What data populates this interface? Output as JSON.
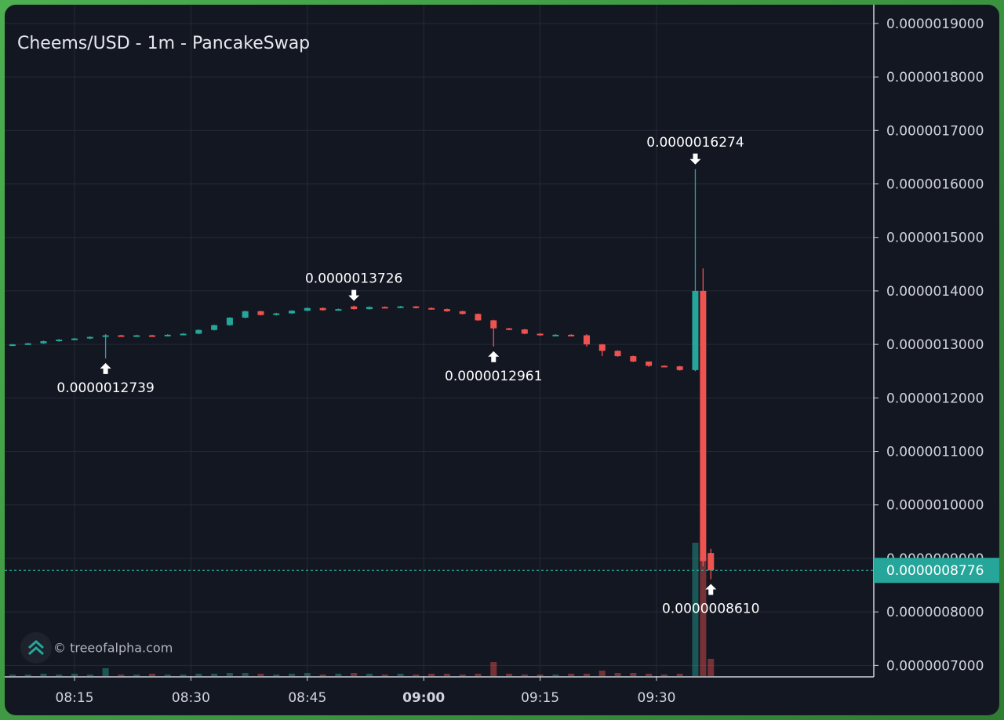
{
  "chart_data": {
    "type": "candlestick",
    "title": "Cheems/USD - 1m - PancakeSwap",
    "watermark": "© treeofalpha.com",
    "up_color": "#26a69a",
    "down_color": "#ef5350",
    "grid": true,
    "x": [
      "08:07",
      "08:09",
      "08:11",
      "08:13",
      "08:15",
      "08:17",
      "08:19",
      "08:21",
      "08:23",
      "08:25",
      "08:27",
      "08:29",
      "08:31",
      "08:33",
      "08:35",
      "08:37",
      "08:39",
      "08:41",
      "08:43",
      "08:45",
      "08:47",
      "08:49",
      "08:51",
      "08:53",
      "08:55",
      "08:57",
      "08:59",
      "09:01",
      "09:03",
      "09:05",
      "09:07",
      "09:09",
      "09:11",
      "09:13",
      "09:15",
      "09:17",
      "09:19",
      "09:21",
      "09:23",
      "09:25",
      "09:27",
      "09:29",
      "09:31",
      "09:33",
      "09:35",
      "09:36",
      "09:37"
    ],
    "open": [
      1.298e-06,
      1.3e-06,
      1.302e-06,
      1.306e-06,
      1.309e-06,
      1.311e-06,
      1.314e-06,
      1.317e-06,
      1.316e-06,
      1.317e-06,
      1.316e-06,
      1.318e-06,
      1.32e-06,
      1.327e-06,
      1.336e-06,
      1.35e-06,
      1.362e-06,
      1.355e-06,
      1.358e-06,
      1.363e-06,
      1.368e-06,
      1.364e-06,
      1.371e-06,
      1.366e-06,
      1.37e-06,
      1.369e-06,
      1.371e-06,
      1.368e-06,
      1.366e-06,
      1.362e-06,
      1.357e-06,
      1.345e-06,
      1.33e-06,
      1.328e-06,
      1.32e-06,
      1.317e-06,
      1.318e-06,
      1.317e-06,
      1.3e-06,
      1.288e-06,
      1.278e-06,
      1.268e-06,
      1.26e-06,
      1.259e-06,
      1.252e-06,
      1.4e-06,
      9.1e-07
    ],
    "high": [
      1.301e-06,
      1.303e-06,
      1.307e-06,
      1.31e-06,
      1.312e-06,
      1.315e-06,
      1.319e-06,
      1.318e-06,
      1.318e-06,
      1.318e-06,
      1.319e-06,
      1.321e-06,
      1.328e-06,
      1.337e-06,
      1.351e-06,
      1.363e-06,
      1.363e-06,
      1.359e-06,
      1.364e-06,
      1.369e-06,
      1.369e-06,
      1.367e-06,
      1.3726e-06,
      1.371e-06,
      1.371e-06,
      1.372e-06,
      1.372e-06,
      1.369e-06,
      1.367e-06,
      1.363e-06,
      1.358e-06,
      1.346e-06,
      1.331e-06,
      1.329e-06,
      1.321e-06,
      1.319e-06,
      1.319e-06,
      1.319e-06,
      1.301e-06,
      1.289e-06,
      1.279e-06,
      1.268e-06,
      1.261e-06,
      1.26e-06,
      1.6274e-06,
      1.442e-06,
      9.18e-07
    ],
    "low": [
      1.297e-06,
      1.299e-06,
      1.301e-06,
      1.305e-06,
      1.308e-06,
      1.31e-06,
      1.2739e-06,
      1.315e-06,
      1.315e-06,
      1.315e-06,
      1.315e-06,
      1.317e-06,
      1.319e-06,
      1.326e-06,
      1.335e-06,
      1.349e-06,
      1.354e-06,
      1.354e-06,
      1.357e-06,
      1.362e-06,
      1.363e-06,
      1.363e-06,
      1.365e-06,
      1.365e-06,
      1.368e-06,
      1.368e-06,
      1.367e-06,
      1.365e-06,
      1.361e-06,
      1.356e-06,
      1.344e-06,
      1.2961e-06,
      1.327e-06,
      1.319e-06,
      1.316e-06,
      1.316e-06,
      1.316e-06,
      1.296e-06,
      1.278e-06,
      1.277e-06,
      1.267e-06,
      1.258e-06,
      1.258e-06,
      1.251e-06,
      1.25e-06,
      8.85e-07,
      8.61e-07
    ],
    "close": [
      1.3e-06,
      1.302e-06,
      1.306e-06,
      1.309e-06,
      1.311e-06,
      1.314e-06,
      1.317e-06,
      1.316e-06,
      1.317e-06,
      1.316e-06,
      1.318e-06,
      1.32e-06,
      1.327e-06,
      1.336e-06,
      1.35e-06,
      1.362e-06,
      1.355e-06,
      1.358e-06,
      1.363e-06,
      1.368e-06,
      1.364e-06,
      1.366e-06,
      1.366e-06,
      1.37e-06,
      1.369e-06,
      1.371e-06,
      1.368e-06,
      1.366e-06,
      1.362e-06,
      1.357e-06,
      1.345e-06,
      1.33e-06,
      1.328e-06,
      1.32e-06,
      1.317e-06,
      1.318e-06,
      1.317e-06,
      1.3e-06,
      1.288e-06,
      1.278e-06,
      1.268e-06,
      1.26e-06,
      1.259e-06,
      1.252e-06,
      1.4e-06,
      8.95e-07,
      8.776e-07
    ],
    "volume": [
      2,
      2,
      3,
      2,
      3,
      2,
      10,
      2,
      2,
      3,
      2,
      2,
      3,
      3,
      4,
      4,
      3,
      2,
      3,
      4,
      2,
      3,
      4,
      3,
      2,
      3,
      2,
      3,
      3,
      2,
      3,
      18,
      3,
      2,
      2,
      2,
      3,
      3,
      7,
      4,
      4,
      3,
      2,
      3,
      170,
      155,
      22
    ],
    "xlim": [
      "08:06",
      "09:58"
    ],
    "xticks": [
      "08:15",
      "08:30",
      "08:45",
      "09:00",
      "09:15",
      "09:30"
    ],
    "ylim": [
      6.8e-07,
      1.935e-06
    ],
    "yticks": [
      {
        "value": 7e-07,
        "label": "0.0000007000"
      },
      {
        "value": 8e-07,
        "label": "0.0000008000"
      },
      {
        "value": 9e-07,
        "label": "0.0000009000"
      },
      {
        "value": 1e-06,
        "label": "0.0000010000"
      },
      {
        "value": 1.1e-06,
        "label": "0.0000011000"
      },
      {
        "value": 1.2e-06,
        "label": "0.0000012000"
      },
      {
        "value": 1.3e-06,
        "label": "0.0000013000"
      },
      {
        "value": 1.4e-06,
        "label": "0.0000014000"
      },
      {
        "value": 1.5e-06,
        "label": "0.0000015000"
      },
      {
        "value": 1.6e-06,
        "label": "0.0000016000"
      },
      {
        "value": 1.7e-06,
        "label": "0.0000017000"
      },
      {
        "value": 1.8e-06,
        "label": "0.0000018000"
      },
      {
        "value": 1.9e-06,
        "label": "0.0000019000"
      }
    ],
    "markers": [
      {
        "label": "0.0000012739",
        "time": "08:19",
        "kind": "low"
      },
      {
        "label": "0.0000013726",
        "time": "08:51",
        "kind": "high"
      },
      {
        "label": "0.0000012961",
        "time": "09:09",
        "kind": "low"
      },
      {
        "label": "0.0000016274",
        "time": "09:35",
        "kind": "high"
      },
      {
        "label": "0.0000008610",
        "time": "09:37",
        "kind": "low"
      }
    ],
    "last_price": {
      "value": 8.776e-07,
      "label": "0.0000008776",
      "color": "#26a69a"
    }
  }
}
